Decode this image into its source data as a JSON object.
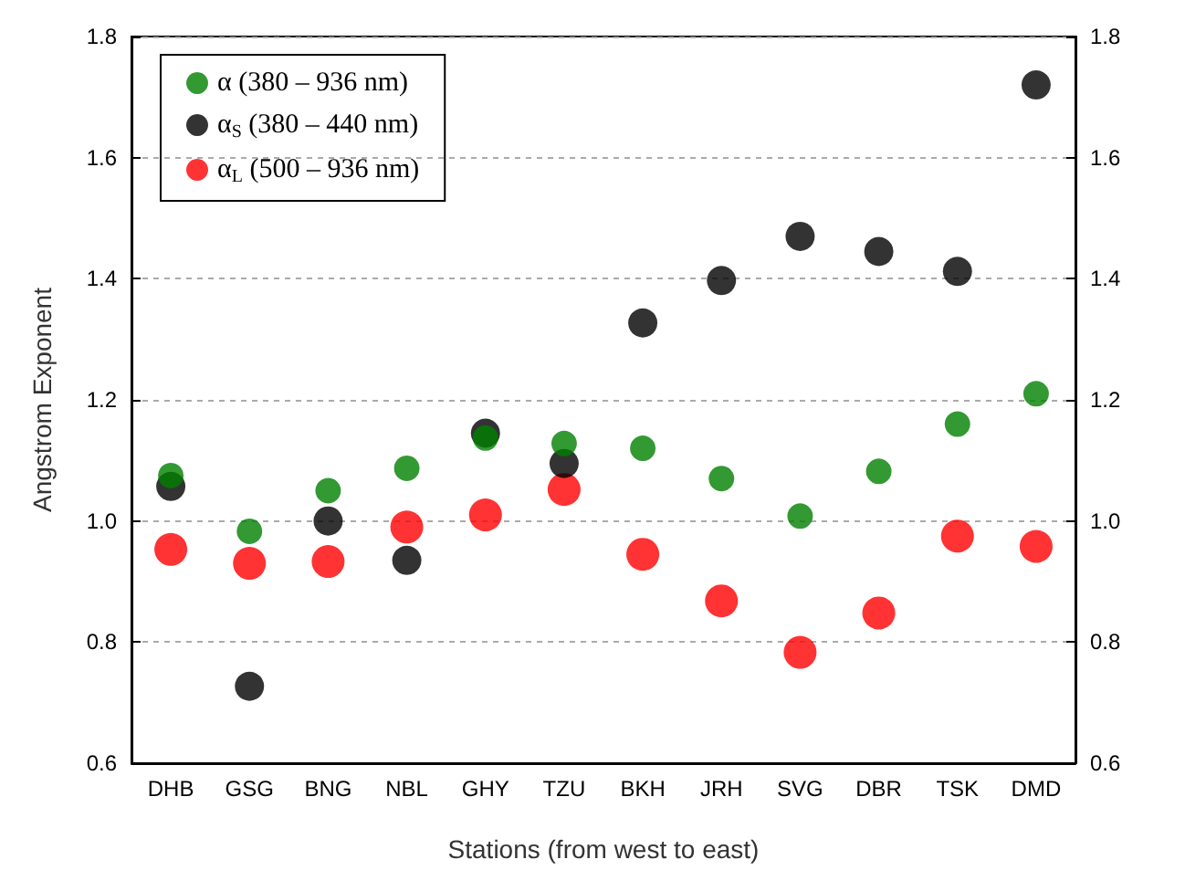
{
  "chart_data": {
    "type": "scatter",
    "xlabel": "Stations (from west to east)",
    "ylabel": "Angstrom Exponent",
    "categories": [
      "DHB",
      "GSG",
      "BNG",
      "NBL",
      "GHY",
      "TZU",
      "BKH",
      "JRH",
      "SVG",
      "DBR",
      "TSK",
      "DMD"
    ],
    "series": [
      {
        "name": "α (380 – 936 nm)",
        "color": "#008000",
        "values": [
          1.075,
          0.983,
          1.05,
          1.087,
          1.137,
          1.128,
          1.12,
          1.07,
          1.008,
          1.082,
          1.16,
          1.21
        ]
      },
      {
        "name": "α$_{S}$ (380 – 440 nm)",
        "color": "#000000",
        "values": [
          1.057,
          0.727,
          1.0,
          0.935,
          1.145,
          1.095,
          1.327,
          1.397,
          1.47,
          1.445,
          1.412,
          1.72
        ]
      },
      {
        "name": "α$_{L}$ (500 – 936 nm)",
        "color": "#ff0000",
        "values": [
          0.953,
          0.93,
          0.933,
          0.99,
          1.01,
          1.052,
          0.945,
          0.868,
          0.783,
          0.848,
          0.975,
          0.958
        ]
      }
    ],
    "ylim": [
      0.6,
      1.8
    ],
    "yticks": [
      0.6,
      0.8,
      {
        "value": 1,
        "label": "1.0"
      },
      1.2,
      1.4,
      1.6,
      1.8
    ],
    "y2lim": [
      0.6,
      1.8
    ],
    "y2ticks": [
      0.6,
      0.8,
      {
        "value": 1,
        "label": "1.0"
      },
      1.2,
      1.4,
      1.6,
      1.8
    ],
    "grid": "y",
    "legend": "top left",
    "marker": "circle"
  }
}
